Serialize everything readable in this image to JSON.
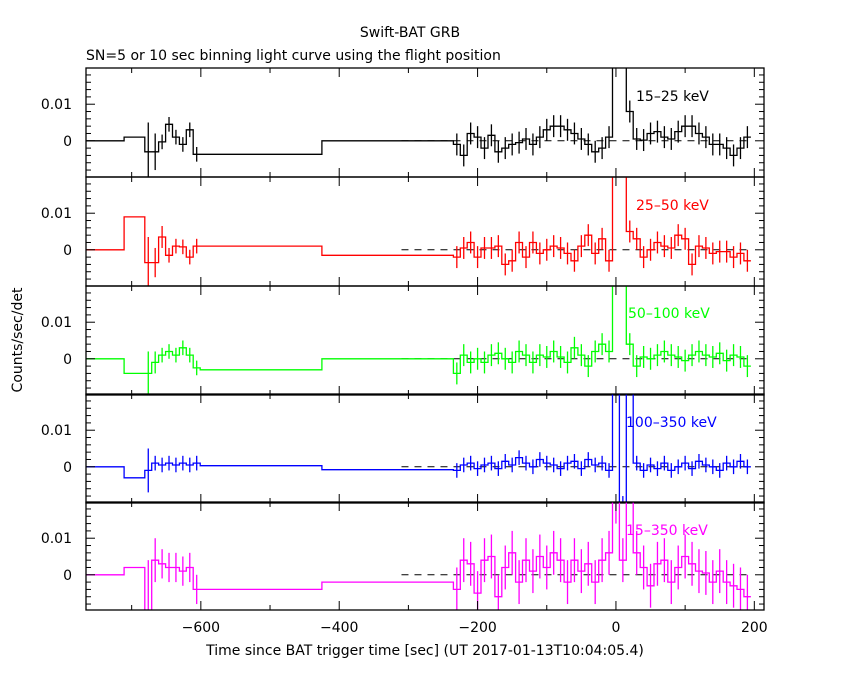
{
  "chart_data": {
    "type": "line",
    "title": "Swift-BAT GRB",
    "subtitle": "SN=5 or 10 sec binning light curve using the flight position",
    "xlabel": "Time since BAT trigger time [sec] (UT 2017-01-13T10:04:05.4)",
    "ylabel": "Counts/sec/det",
    "xlim": [
      -766,
      214
    ],
    "ylim": [
      -0.0099,
      0.0199
    ],
    "x_ticks": [
      -600,
      -400,
      -200,
      0,
      200
    ],
    "x_tick_labels": [
      "−600",
      "−400",
      "−200",
      "0",
      "200"
    ],
    "y_ticks": [
      0.01,
      0
    ],
    "y_tick_labels": [
      "0.01",
      "0"
    ],
    "dashed_zero_range": [
      -310,
      190
    ],
    "bin_start": -235,
    "bin_width": 10,
    "series": [
      {
        "name": "15–25 keV",
        "color": "#000000",
        "err": 0.003,
        "early": [
          [
            -766,
            -711,
            0,
            0
          ],
          [
            -711,
            -681,
            0.001,
            0
          ],
          [
            -681,
            -671,
            -0.003,
            0.008
          ],
          [
            -671,
            -661,
            -0.003,
            0.005
          ],
          [
            -661,
            -651,
            -0.0003,
            0.002
          ],
          [
            -651,
            -641,
            0.0045,
            0.002
          ],
          [
            -641,
            -631,
            0.001,
            0.002
          ],
          [
            -631,
            -621,
            -0.001,
            0.002
          ],
          [
            -621,
            -611,
            0.003,
            0.002
          ],
          [
            -611,
            -601,
            -0.0037,
            0.002
          ],
          [
            -601,
            -425,
            -0.0037,
            0
          ],
          [
            -425,
            -235,
            0,
            0
          ]
        ],
        "values": [
          -0.001,
          -0.004,
          0.002,
          0.001,
          -0.002,
          0.0015,
          -0.003,
          -0.002,
          -0.001,
          -0.0005,
          0.0005,
          -0.001,
          0.001,
          0.003,
          0.004,
          0.004,
          0.003,
          0.002,
          0.0005,
          -0.001,
          -0.003,
          -0.002,
          0.001,
          0.03,
          0.028,
          0.008,
          0.0005,
          0.0002,
          0.002,
          0.0025,
          0.001,
          0.0005,
          0.0025,
          0.004,
          0.004,
          0.002,
          0.001,
          -0.001,
          -0.001,
          -0.002,
          -0.004,
          -0.002,
          0.001
        ]
      },
      {
        "name": "25–50 keV",
        "color": "#ff0000",
        "err": 0.003,
        "early": [
          [
            -766,
            -711,
            0,
            0
          ],
          [
            -711,
            -681,
            0.009,
            0
          ],
          [
            -681,
            -671,
            -0.0035,
            0.007
          ],
          [
            -671,
            -661,
            -0.0035,
            0.004
          ],
          [
            -661,
            -651,
            0.0035,
            0.003
          ],
          [
            -651,
            -641,
            -0.0015,
            0.002
          ],
          [
            -641,
            -631,
            0.001,
            0.002
          ],
          [
            -631,
            -621,
            0.0008,
            0.002
          ],
          [
            -621,
            -611,
            -0.002,
            0.002
          ],
          [
            -611,
            -601,
            0.001,
            0.002
          ],
          [
            -601,
            -425,
            0.001,
            0
          ],
          [
            -425,
            -235,
            -0.0015,
            0
          ]
        ],
        "values": [
          -0.002,
          0.0005,
          0.002,
          -0.002,
          0.0005,
          0.0005,
          0.001,
          -0.004,
          -0.003,
          0.002,
          -0.002,
          0.002,
          -0.001,
          0,
          0.001,
          0.0005,
          -0.001,
          -0.003,
          0.001,
          0.004,
          -0.001,
          0.003,
          -0.003,
          0.03,
          0.03,
          0.005,
          0.003,
          -0.002,
          0,
          0.002,
          0.001,
          0.0005,
          0.004,
          0.003,
          -0.004,
          0.001,
          0.0005,
          -0.001,
          -0.0005,
          -0.0005,
          -0.002,
          -0.001,
          -0.003
        ]
      },
      {
        "name": "50–100 keV",
        "color": "#00ff00",
        "err": 0.003,
        "early": [
          [
            -766,
            -711,
            0,
            0
          ],
          [
            -711,
            -681,
            -0.004,
            0
          ],
          [
            -681,
            -671,
            -0.004,
            0.006
          ],
          [
            -671,
            -661,
            -0.001,
            0.003
          ],
          [
            -661,
            -651,
            0.001,
            0.002
          ],
          [
            -651,
            -641,
            0.002,
            0.002
          ],
          [
            -641,
            -631,
            0.001,
            0.002
          ],
          [
            -631,
            -621,
            0.003,
            0.002
          ],
          [
            -621,
            -611,
            0.001,
            0.002
          ],
          [
            -611,
            -601,
            -0.0025,
            0.002
          ],
          [
            -601,
            -425,
            -0.003,
            0
          ],
          [
            -425,
            -235,
            0,
            0
          ]
        ],
        "values": [
          -0.004,
          0.001,
          -0.001,
          0,
          -0.001,
          0.001,
          0.0015,
          0,
          -0.001,
          0.002,
          0.001,
          -0.001,
          0.001,
          0.0005,
          0.002,
          0.0005,
          -0.001,
          0.003,
          0.001,
          -0.002,
          0.002,
          0.004,
          0.002,
          0.03,
          0.03,
          0.004,
          -0.002,
          0.0005,
          0,
          0.001,
          0.002,
          0.001,
          0.0005,
          -0.0005,
          0.001,
          0.002,
          0.001,
          0.0005,
          0.0015,
          -0.0005,
          0.001,
          0.0005,
          -0.002
        ]
      },
      {
        "name": "100–350 keV",
        "color": "#0000ff",
        "err": 0.002,
        "early": [
          [
            -766,
            -711,
            0,
            0
          ],
          [
            -711,
            -681,
            -0.003,
            0
          ],
          [
            -681,
            -671,
            -0.001,
            0.006
          ],
          [
            -671,
            -661,
            0.001,
            0.002
          ],
          [
            -661,
            -651,
            0.0005,
            0.002
          ],
          [
            -651,
            -641,
            0.001,
            0.002
          ],
          [
            -641,
            -631,
            0.0005,
            0.002
          ],
          [
            -631,
            -621,
            0.001,
            0.002
          ],
          [
            -621,
            -611,
            0.0005,
            0.002
          ],
          [
            -611,
            -601,
            0.001,
            0.002
          ],
          [
            -601,
            -425,
            0.0003,
            0
          ],
          [
            -425,
            -235,
            -0.0008,
            0
          ]
        ],
        "values": [
          -0.001,
          0.0005,
          0.001,
          -0.0005,
          0.0005,
          0.001,
          -0.0005,
          0.0015,
          0.0005,
          0.0025,
          0.001,
          0,
          0.002,
          0.001,
          0.0005,
          -0.0005,
          0.001,
          0.0015,
          -0.0005,
          0.002,
          0.0005,
          0.001,
          -0.001,
          0.03,
          -0.01,
          0.03,
          0.001,
          -0.001,
          0.0005,
          -0.0005,
          0.001,
          -0.001,
          0,
          0.001,
          -0.0005,
          0.0015,
          0.0005,
          0,
          -0.001,
          0.001,
          0,
          0.0015,
          0
        ]
      },
      {
        "name": "15–350 keV",
        "color": "#ff00ff",
        "err": 0.006,
        "early": [
          [
            -766,
            -711,
            0,
            0
          ],
          [
            -711,
            -681,
            0.002,
            0
          ],
          [
            -681,
            -671,
            -0.01,
            0.014
          ],
          [
            -671,
            -661,
            0.004,
            0.006
          ],
          [
            -661,
            -651,
            0.003,
            0.004
          ],
          [
            -651,
            -641,
            0.002,
            0.004
          ],
          [
            -641,
            -631,
            0.002,
            0.004
          ],
          [
            -631,
            -621,
            0.001,
            0.004
          ],
          [
            -621,
            -611,
            0.002,
            0.004
          ],
          [
            -611,
            -601,
            -0.004,
            0.004
          ],
          [
            -601,
            -425,
            -0.004,
            0
          ],
          [
            -425,
            -235,
            -0.002,
            0
          ]
        ],
        "values": [
          -0.004,
          0.004,
          0.003,
          -0.005,
          0.004,
          0.005,
          -0.006,
          0.002,
          0.006,
          -0.002,
          0.004,
          0.001,
          0.005,
          0.002,
          0.006,
          0.004,
          -0.002,
          0.004,
          0.001,
          0.003,
          -0.002,
          0.004,
          0.006,
          0.02,
          0.004,
          0.03,
          0.006,
          0.002,
          -0.003,
          0.003,
          0.004,
          -0.002,
          0.002,
          0.005,
          0.003,
          0.001,
          0.0005,
          -0.002,
          0.001,
          -0.002,
          -0.003,
          -0.004,
          -0.006
        ]
      }
    ]
  }
}
